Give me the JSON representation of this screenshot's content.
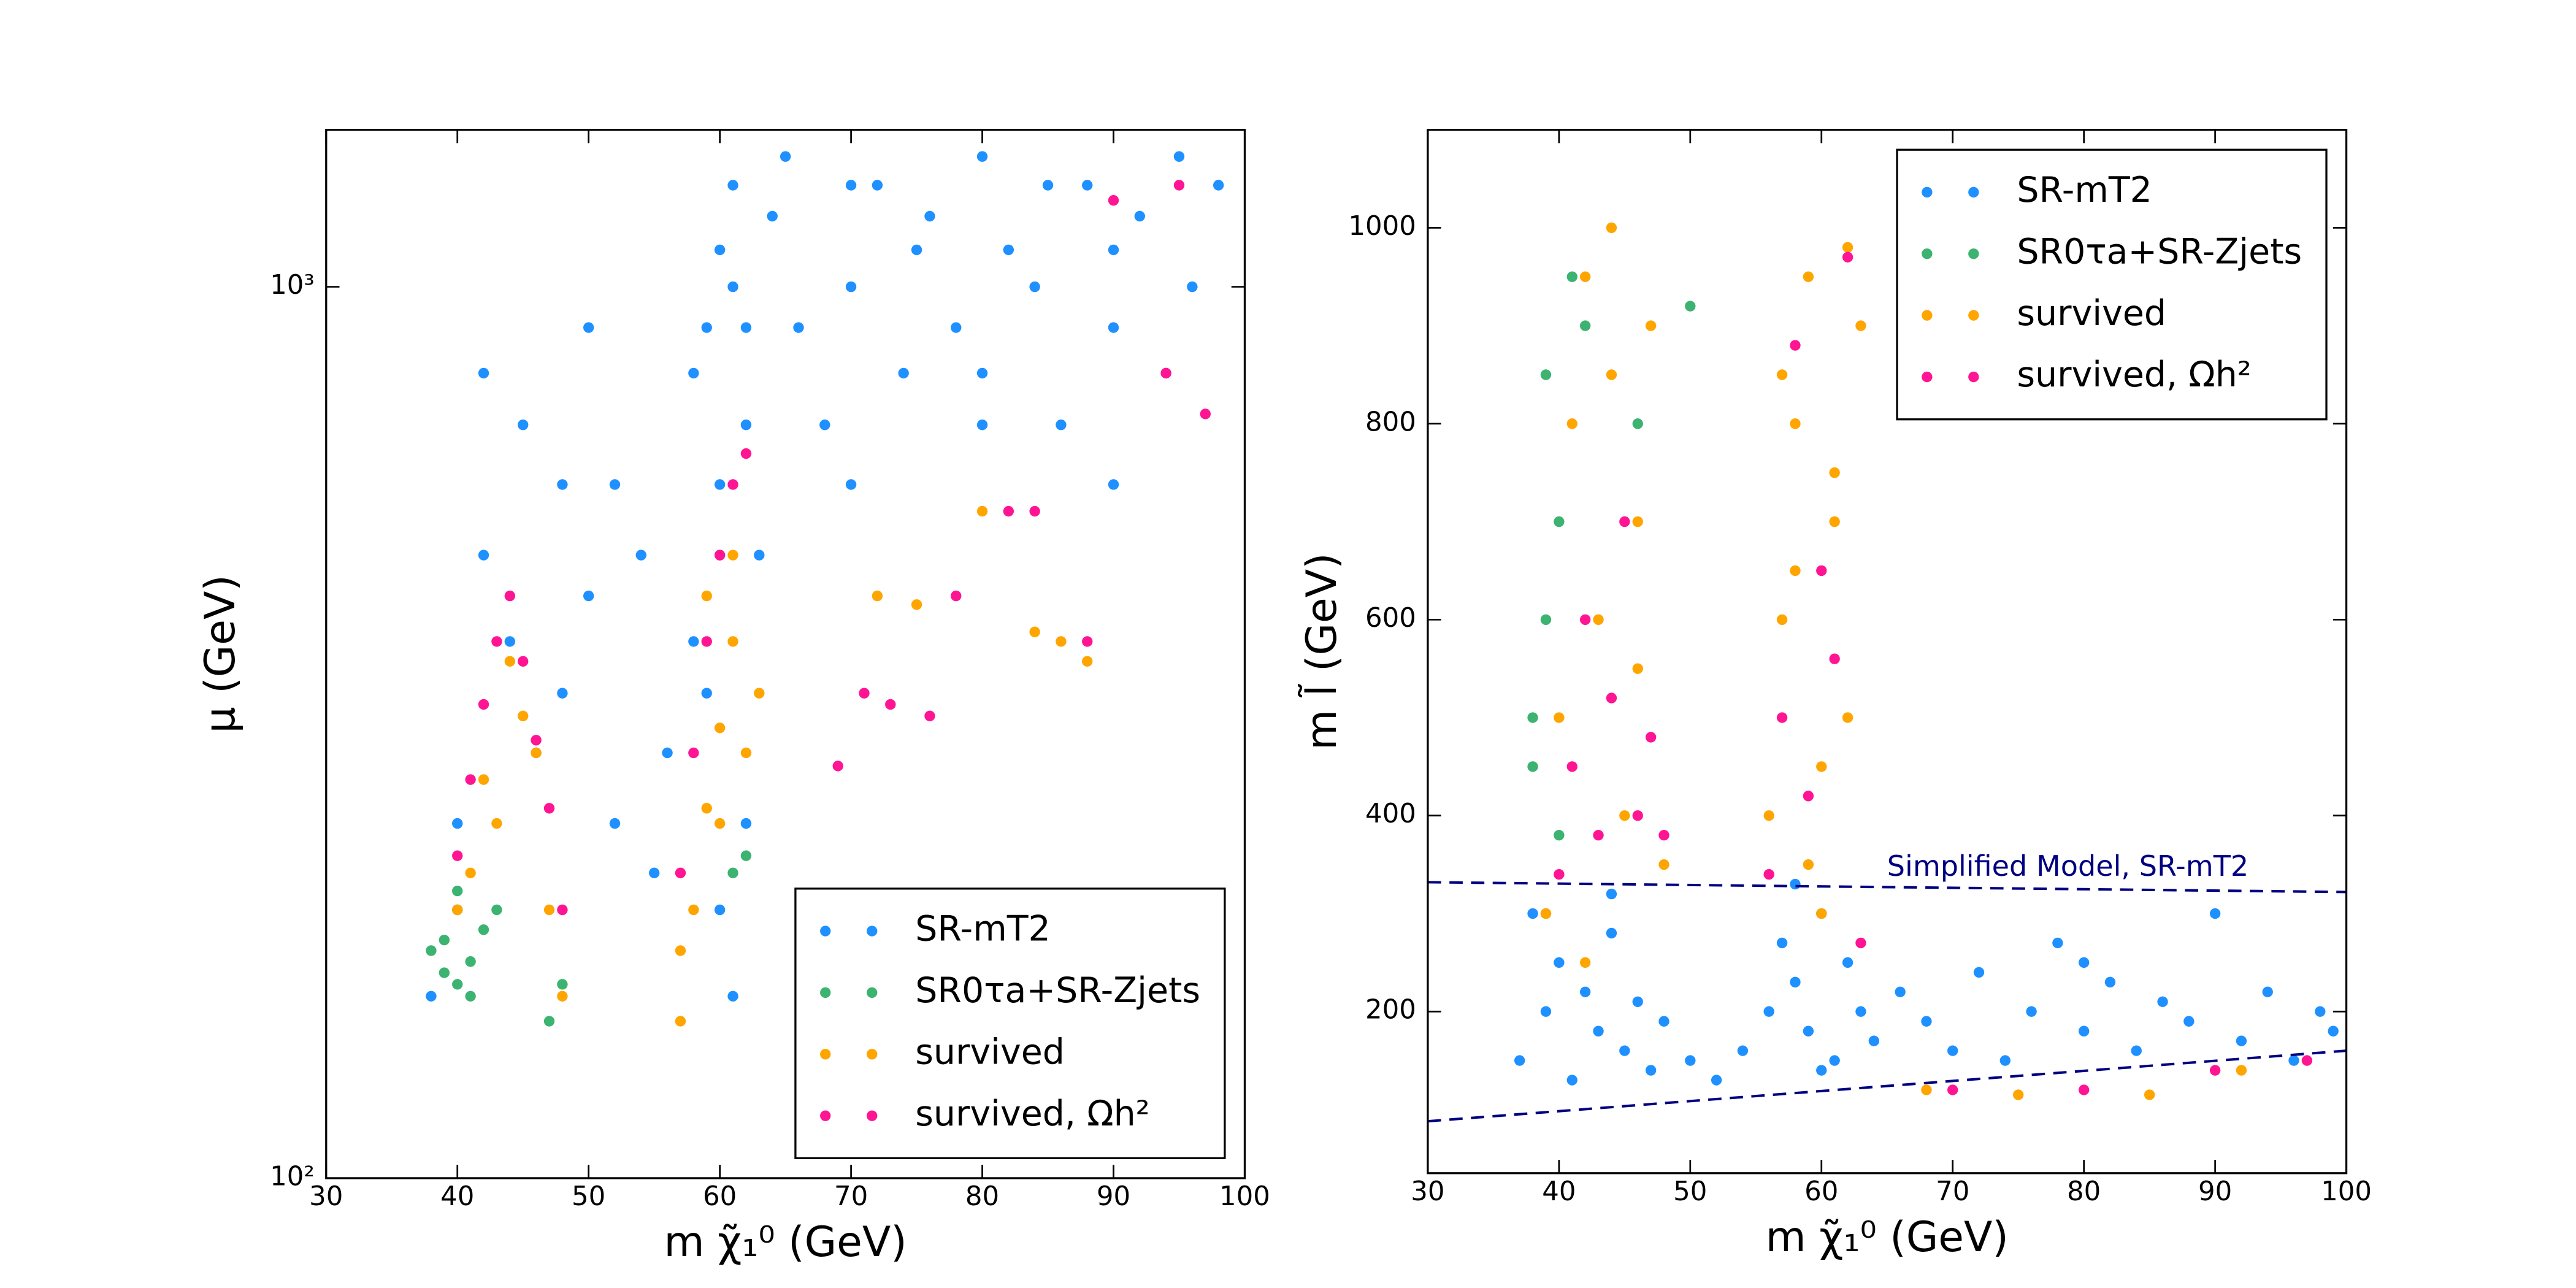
{
  "chart_data": [
    {
      "type": "scatter",
      "xlabel": "m χ̃₁⁰ (GeV)",
      "ylabel": "μ (GeV)",
      "xlim": [
        30,
        100
      ],
      "xticks": [
        30,
        40,
        50,
        60,
        70,
        80,
        90,
        100
      ],
      "ylim": [
        100,
        1500
      ],
      "yscale": "log",
      "yticks": [
        {
          "value": 100,
          "label": "10²"
        },
        {
          "value": 1000,
          "label": "10³"
        }
      ],
      "legend": "lower right",
      "series": [
        {
          "name": "SR-mT2",
          "color": "#1e90ff",
          "x": [
            38,
            40,
            42,
            44,
            46,
            48,
            50,
            52,
            54,
            56,
            58,
            59,
            60,
            61,
            62,
            63,
            64,
            66,
            68,
            70,
            72,
            74,
            76,
            78,
            80,
            82,
            84,
            86,
            88,
            90,
            92,
            94,
            96,
            98,
            42,
            45,
            48,
            52,
            55,
            58,
            60,
            61,
            62,
            65,
            70,
            75,
            80,
            85,
            90,
            95,
            40,
            50,
            60,
            70,
            80,
            90,
            60,
            61,
            59,
            62
          ],
          "values": [
            160,
            250,
            500,
            400,
            300,
            350,
            450,
            600,
            500,
            300,
            800,
            900,
            1100,
            1000,
            700,
            500,
            1200,
            900,
            700,
            1000,
            1300,
            800,
            1200,
            900,
            1400,
            1100,
            1000,
            700,
            1300,
            900,
            1200,
            800,
            1000,
            1300,
            800,
            700,
            600,
            250,
            220,
            400,
            600,
            1300,
            900,
            1400,
            600,
            1100,
            700,
            1300,
            1100,
            1400,
            200,
            900,
            500,
            1300,
            800,
            600,
            200,
            160,
            350,
            250
          ]
        },
        {
          "name": "SR0τa+SR-Zjets",
          "color": "#3cb371",
          "x": [
            38,
            39,
            40,
            41,
            42,
            40,
            39,
            41,
            47,
            48,
            62,
            61,
            40,
            43
          ],
          "values": [
            180,
            170,
            200,
            160,
            190,
            210,
            185,
            175,
            150,
            165,
            230,
            220,
            165,
            200
          ]
        },
        {
          "name": "survived",
          "color": "#ffa500",
          "x": [
            40,
            42,
            44,
            46,
            48,
            43,
            45,
            41,
            47,
            57,
            58,
            59,
            60,
            61,
            62,
            57,
            59,
            61,
            63,
            60,
            72,
            84,
            86,
            88,
            80,
            75
          ],
          "values": [
            200,
            280,
            380,
            300,
            160,
            250,
            330,
            220,
            200,
            150,
            200,
            260,
            320,
            400,
            300,
            180,
            450,
            500,
            350,
            250,
            450,
            410,
            400,
            380,
            560,
            440
          ]
        },
        {
          "name": "survived, Ωh²",
          "color": "#ff1493",
          "x": [
            40,
            41,
            42,
            43,
            44,
            45,
            46,
            47,
            48,
            57,
            58,
            59,
            60,
            61,
            62,
            69,
            71,
            73,
            76,
            78,
            82,
            84,
            88,
            90,
            94,
            95,
            97
          ],
          "values": [
            230,
            280,
            340,
            400,
            450,
            380,
            310,
            260,
            200,
            220,
            300,
            400,
            500,
            600,
            650,
            290,
            350,
            340,
            330,
            450,
            560,
            560,
            400,
            1250,
            800,
            1300,
            720
          ]
        }
      ]
    },
    {
      "type": "scatter",
      "xlabel": "m χ̃₁⁰ (GeV)",
      "ylabel": "m l̃ (GeV)",
      "xlim": [
        30,
        100
      ],
      "xticks": [
        30,
        40,
        50,
        60,
        70,
        80,
        90,
        100
      ],
      "ylim": [
        35,
        1100
      ],
      "yticks": [
        200,
        400,
        600,
        800,
        1000
      ],
      "legend": "upper right",
      "series": [
        {
          "name": "SR-mT2",
          "color": "#1e90ff",
          "x": [
            37,
            38,
            39,
            40,
            41,
            42,
            43,
            44,
            45,
            46,
            47,
            48,
            50,
            52,
            54,
            56,
            57,
            58,
            59,
            60,
            61,
            62,
            63,
            64,
            66,
            68,
            70,
            72,
            74,
            76,
            78,
            80,
            82,
            84,
            86,
            88,
            90,
            92,
            94,
            96,
            98,
            99,
            44,
            58,
            60,
            80
          ],
          "values": [
            150,
            300,
            200,
            250,
            130,
            220,
            180,
            280,
            160,
            210,
            140,
            190,
            150,
            130,
            160,
            200,
            270,
            230,
            180,
            300,
            150,
            250,
            200,
            170,
            220,
            190,
            160,
            240,
            150,
            200,
            270,
            180,
            230,
            160,
            210,
            190,
            300,
            170,
            220,
            150,
            200,
            180,
            320,
            330,
            140,
            250
          ]
        },
        {
          "name": "SR0τa+SR-Zjets",
          "color": "#3cb371",
          "x": [
            38,
            39,
            39,
            40,
            40,
            41,
            38,
            39,
            42,
            46,
            50
          ],
          "values": [
            450,
            600,
            850,
            380,
            700,
            950,
            500,
            300,
            900,
            800,
            920
          ]
        },
        {
          "name": "survived",
          "color": "#ffa500",
          "x": [
            39,
            40,
            41,
            42,
            43,
            44,
            45,
            46,
            47,
            48,
            42,
            44,
            46,
            56,
            57,
            58,
            59,
            60,
            61,
            62,
            63,
            58,
            60,
            62,
            57,
            59,
            61,
            68,
            75,
            85,
            92
          ],
          "values": [
            300,
            500,
            800,
            950,
            600,
            1000,
            400,
            700,
            900,
            350,
            250,
            850,
            550,
            400,
            600,
            800,
            950,
            300,
            700,
            500,
            900,
            650,
            450,
            980,
            850,
            350,
            750,
            120,
            115,
            115,
            140
          ]
        },
        {
          "name": "survived, Ωh²",
          "color": "#ff1493",
          "x": [
            40,
            41,
            42,
            43,
            44,
            45,
            46,
            47,
            48,
            56,
            57,
            58,
            59,
            60,
            61,
            62,
            63,
            70,
            80,
            90,
            97
          ],
          "values": [
            340,
            450,
            600,
            380,
            520,
            700,
            400,
            480,
            380,
            340,
            500,
            880,
            420,
            650,
            560,
            970,
            270,
            120,
            120,
            140,
            150
          ]
        }
      ],
      "reference_lines": [
        {
          "name": "Simplified Model, SR-mT2",
          "color": "#000080",
          "x": [
            30,
            100
          ],
          "values": [
            332,
            322
          ]
        },
        {
          "color": "#000080",
          "x": [
            30,
            100
          ],
          "values": [
            88,
            160
          ]
        }
      ]
    }
  ]
}
